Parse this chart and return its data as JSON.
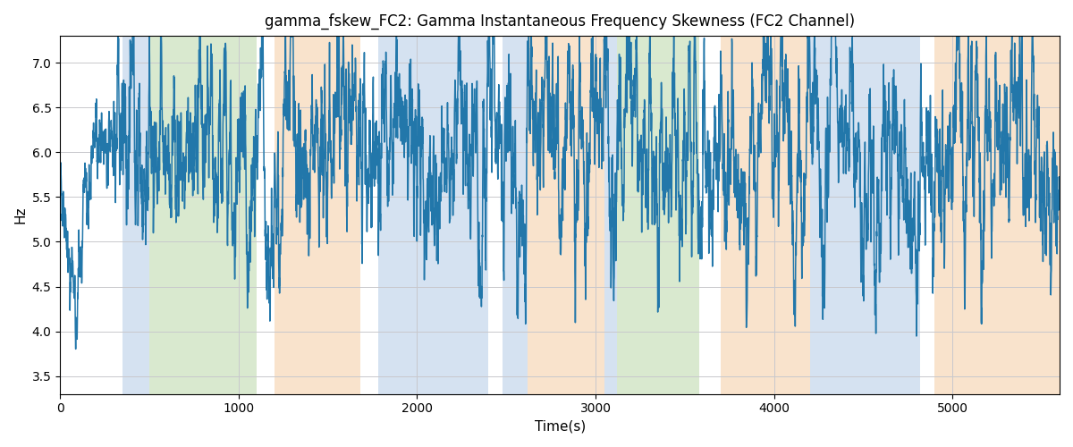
{
  "title": "gamma_fskew_FC2: Gamma Instantaneous Frequency Skewness (FC2 Channel)",
  "xlabel": "Time(s)",
  "ylabel": "Hz",
  "ylim": [
    3.3,
    7.3
  ],
  "xlim": [
    0,
    5600
  ],
  "line_color": "#2277aa",
  "line_width": 1.1,
  "bg_color": "white",
  "grid_color": "#c8c8cc",
  "figsize": [
    12,
    5
  ],
  "dpi": 100,
  "bands": [
    {
      "xmin": 350,
      "xmax": 500,
      "color": "#adc6e5",
      "alpha": 0.5
    },
    {
      "xmin": 500,
      "xmax": 1100,
      "color": "#b5d4a0",
      "alpha": 0.5
    },
    {
      "xmin": 1200,
      "xmax": 1680,
      "color": "#f5c99a",
      "alpha": 0.5
    },
    {
      "xmin": 1780,
      "xmax": 2400,
      "color": "#adc6e5",
      "alpha": 0.5
    },
    {
      "xmin": 2480,
      "xmax": 2620,
      "color": "#adc6e5",
      "alpha": 0.5
    },
    {
      "xmin": 2620,
      "xmax": 3050,
      "color": "#f5c99a",
      "alpha": 0.5
    },
    {
      "xmin": 3050,
      "xmax": 3120,
      "color": "#adc6e5",
      "alpha": 0.5
    },
    {
      "xmin": 3120,
      "xmax": 3580,
      "color": "#b5d4a0",
      "alpha": 0.5
    },
    {
      "xmin": 3700,
      "xmax": 4200,
      "color": "#f5c99a",
      "alpha": 0.5
    },
    {
      "xmin": 4200,
      "xmax": 4820,
      "color": "#adc6e5",
      "alpha": 0.5
    },
    {
      "xmin": 4900,
      "xmax": 5600,
      "color": "#f5c99a",
      "alpha": 0.5
    }
  ],
  "seed": 12345,
  "n_points": 5600,
  "t_start": 0,
  "t_end": 5600
}
